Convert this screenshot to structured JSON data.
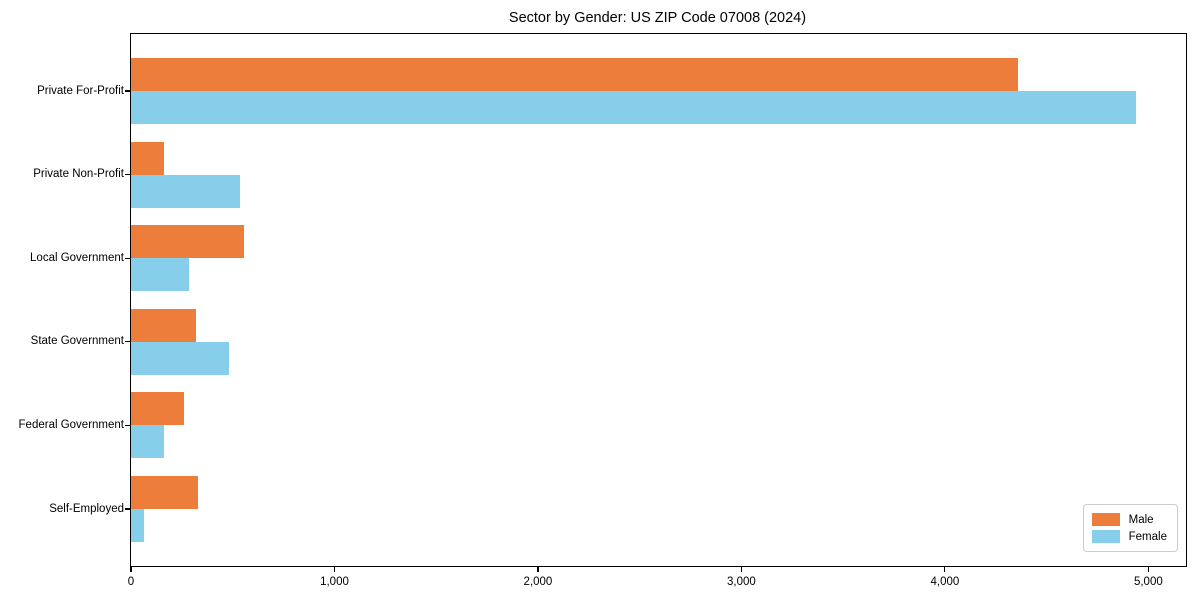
{
  "title": "Sector by Gender: US ZIP Code 07008 (2024)",
  "colors": {
    "male": "#ed7d3a",
    "female": "#87ceeb",
    "axis": "#000000",
    "background": "#ffffff",
    "legend_border": "#cccccc"
  },
  "chart_data": {
    "type": "bar",
    "orientation": "horizontal",
    "title": "Sector by Gender: US ZIP Code 07008 (2024)",
    "categories": [
      "Private For-Profit",
      "Private Non-Profit",
      "Local Government",
      "State Government",
      "Federal Government",
      "Self-Employed"
    ],
    "series": [
      {
        "name": "Male",
        "color": "#ed7d3a",
        "values": [
          4360,
          160,
          555,
          320,
          260,
          330
        ]
      },
      {
        "name": "Female",
        "color": "#87ceeb",
        "values": [
          4940,
          535,
          285,
          480,
          160,
          65
        ]
      }
    ],
    "xlabel": "",
    "ylabel": "",
    "xlim": [
      0,
      5185
    ],
    "x_ticks": [
      0,
      1000,
      2000,
      3000,
      4000,
      5000
    ],
    "x_tick_labels": [
      "0",
      "1,000",
      "2,000",
      "3,000",
      "4,000",
      "5,000"
    ],
    "grid": false,
    "bar_order_top_to_bottom": [
      "Male",
      "Female"
    ],
    "legend": {
      "position": "lower right",
      "entries": [
        "Male",
        "Female"
      ]
    }
  }
}
